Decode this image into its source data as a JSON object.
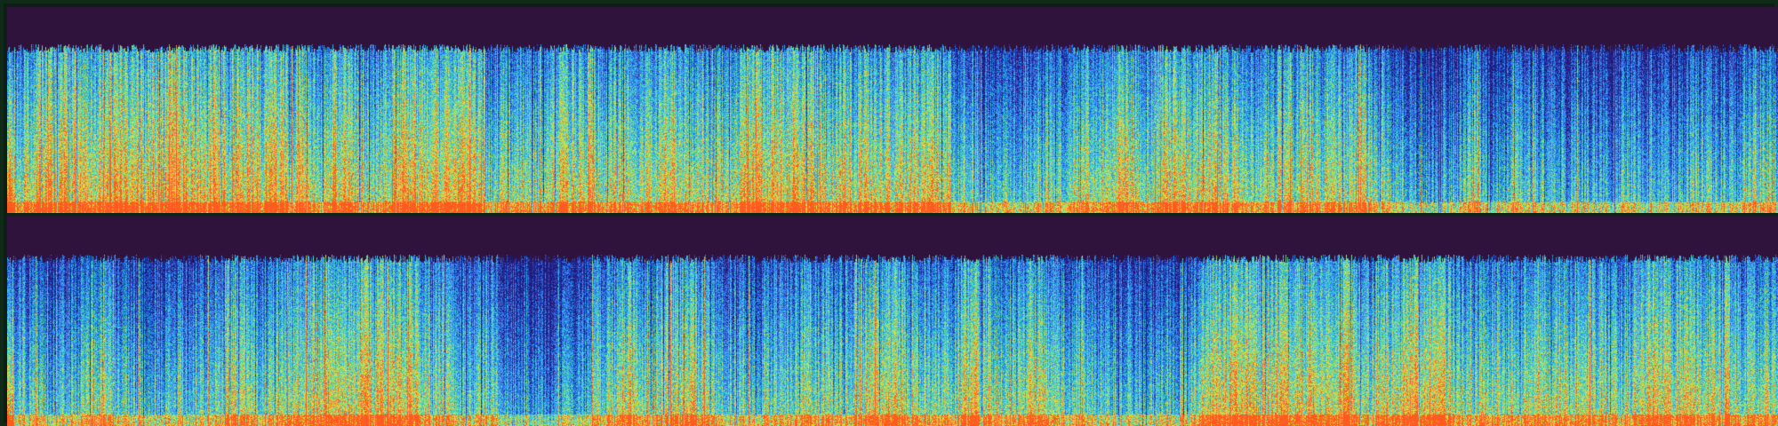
{
  "spectrogram": {
    "channels": [
      {
        "id": "top",
        "mode": "stereo-left"
      },
      {
        "id": "bottom",
        "mode": "stereo-right"
      }
    ],
    "colors": {
      "background": "#2f133c",
      "frame": "#102a18",
      "low": "#221a7a",
      "midlow": "#2d6cf0",
      "mid": "#2fb8e8",
      "midhigh": "#5fe0a0",
      "high": "#e8e23a",
      "peak": "#ff5a20"
    },
    "colormap": "jet"
  }
}
